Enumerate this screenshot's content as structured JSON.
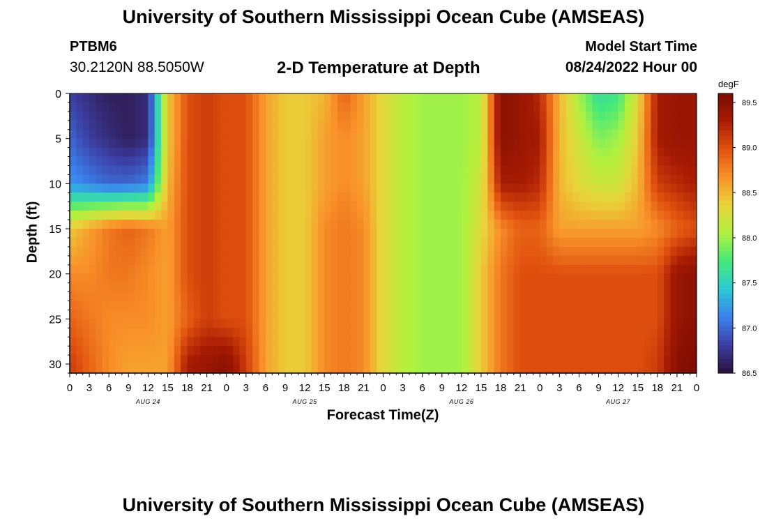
{
  "header": {
    "title": "University of Southern Mississippi Ocean Cube (AMSEAS)",
    "station": "PTBM6",
    "coords": "30.2120N  88.5050W",
    "subtitle": "2-D Temperature at Depth",
    "model_start_label": "Model Start Time",
    "model_start_value": "08/24/2022 Hour 00"
  },
  "footer": {
    "title": "University of Southern Mississippi Ocean Cube (AMSEAS)"
  },
  "colors": {
    "colormap": [
      "#2a1039",
      "#3c3ea3",
      "#3b82ee",
      "#2ec9d4",
      "#46e97a",
      "#b1f23f",
      "#e9d43a",
      "#f9922a",
      "#e1520f",
      "#a81b03",
      "#7c0c02"
    ],
    "background": "#ffffff",
    "axis": "#000000"
  },
  "chart_data": {
    "type": "heatmap",
    "xlabel": "Forecast Time(Z)",
    "ylabel": "Depth (ft)",
    "colorbar_unit": "degF",
    "xlim": [
      0,
      96
    ],
    "ylim": [
      31,
      0
    ],
    "x_tick_labels": [
      "0",
      "3",
      "6",
      "9",
      "12",
      "15",
      "18",
      "21",
      "0",
      "3",
      "6",
      "9",
      "12",
      "15",
      "18",
      "21",
      "0",
      "3",
      "6",
      "9",
      "12",
      "15",
      "18",
      "21",
      "0",
      "3",
      "6",
      "9",
      "12",
      "15",
      "18",
      "21",
      "0"
    ],
    "day_labels": [
      "AUG 24",
      "AUG 25",
      "AUG 26",
      "AUG 27"
    ],
    "y_ticks": [
      0,
      5,
      10,
      15,
      20,
      25,
      30
    ],
    "colorbar_range": [
      86.5,
      89.6
    ],
    "colorbar_ticks": [
      "86.5",
      "87.0",
      "87.5",
      "88.0",
      "88.5",
      "89.0",
      "89.5"
    ],
    "x_hours": [
      0,
      3,
      6,
      9,
      12,
      15,
      18,
      21,
      24,
      27,
      30,
      33,
      36,
      39,
      42,
      45,
      48,
      51,
      54,
      57,
      60,
      63,
      66,
      69,
      72,
      75,
      78,
      81,
      84,
      87,
      90,
      93,
      96
    ],
    "depths_ft": [
      0,
      5,
      10,
      15,
      20,
      25,
      30
    ],
    "temperature_degF": [
      [
        86.8,
        86.7,
        86.6,
        86.6,
        86.7,
        88.4,
        89.0,
        89.1,
        89.0,
        89.0,
        88.6,
        88.4,
        88.4,
        88.5,
        88.9,
        88.6,
        88.3,
        88.1,
        88.0,
        88.0,
        88.0,
        88.1,
        89.5,
        89.4,
        89.2,
        88.5,
        88.0,
        87.6,
        87.7,
        88.3,
        89.3,
        89.4,
        89.4
      ],
      [
        87.0,
        86.8,
        86.7,
        86.6,
        86.7,
        88.4,
        89.0,
        89.1,
        89.0,
        89.0,
        88.6,
        88.4,
        88.4,
        88.6,
        88.7,
        88.6,
        88.3,
        88.1,
        88.0,
        88.0,
        88.0,
        88.1,
        89.5,
        89.4,
        89.3,
        88.5,
        88.2,
        87.9,
        88.0,
        88.4,
        89.3,
        89.4,
        89.4
      ],
      [
        87.2,
        87.1,
        87.0,
        87.0,
        87.1,
        88.5,
        89.0,
        89.1,
        89.0,
        89.0,
        88.6,
        88.4,
        88.4,
        88.6,
        88.7,
        88.6,
        88.3,
        88.1,
        88.0,
        88.0,
        88.0,
        88.2,
        89.3,
        89.3,
        89.2,
        88.5,
        88.3,
        88.2,
        88.2,
        88.5,
        89.1,
        89.2,
        89.3
      ],
      [
        88.4,
        88.6,
        88.8,
        88.9,
        88.8,
        88.6,
        89.0,
        89.1,
        89.0,
        89.0,
        88.6,
        88.4,
        88.4,
        88.7,
        88.8,
        88.7,
        88.3,
        88.1,
        88.0,
        88.0,
        88.0,
        88.3,
        88.7,
        88.9,
        88.9,
        88.6,
        88.6,
        88.6,
        88.6,
        88.6,
        88.7,
        88.9,
        89.0
      ],
      [
        88.7,
        88.7,
        88.8,
        88.8,
        88.7,
        88.6,
        89.0,
        89.1,
        89.0,
        89.0,
        88.6,
        88.4,
        88.4,
        88.7,
        88.8,
        88.7,
        88.3,
        88.1,
        88.0,
        88.0,
        88.0,
        88.4,
        88.8,
        89.0,
        89.0,
        89.0,
        89.0,
        89.0,
        89.0,
        89.0,
        89.0,
        89.4,
        89.5
      ],
      [
        88.9,
        88.8,
        88.7,
        88.7,
        88.7,
        88.6,
        88.9,
        89.1,
        89.0,
        89.0,
        88.6,
        88.4,
        88.4,
        88.7,
        88.8,
        88.7,
        88.3,
        88.1,
        88.0,
        88.0,
        88.0,
        88.4,
        88.8,
        89.0,
        89.0,
        89.0,
        89.0,
        89.0,
        89.0,
        89.0,
        89.0,
        89.4,
        89.5
      ],
      [
        89.1,
        88.9,
        88.7,
        88.6,
        88.6,
        88.6,
        89.3,
        89.4,
        89.5,
        89.1,
        88.6,
        88.4,
        88.4,
        88.7,
        88.8,
        88.7,
        88.3,
        88.1,
        88.0,
        88.0,
        88.0,
        88.4,
        88.8,
        89.0,
        89.0,
        89.0,
        89.0,
        89.0,
        89.0,
        89.0,
        89.1,
        89.5,
        89.6
      ]
    ]
  }
}
